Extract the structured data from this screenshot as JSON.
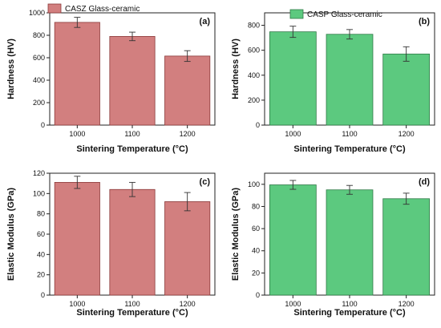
{
  "chart_data": [
    {
      "type": "bar",
      "panel_label": "(a)",
      "categories": [
        "1000",
        "1100",
        "1200"
      ],
      "values": [
        915,
        790,
        615
      ],
      "errors": [
        45,
        38,
        48
      ],
      "series_name": "CASZ Glass-ceramic",
      "xlabel": "Sintering Temperature (°C)",
      "ylabel": "Hardness (HV)",
      "ylim": [
        0,
        1000
      ],
      "yticks": [
        0,
        200,
        400,
        600,
        800,
        1000
      ],
      "legend": "top-left",
      "grid": false,
      "bar_color": "#d27f7f",
      "bar_edge": "#8b3a3a"
    },
    {
      "type": "bar",
      "panel_label": "(b)",
      "categories": [
        "1000",
        "1100",
        "1200"
      ],
      "values": [
        748,
        728,
        570
      ],
      "errors": [
        45,
        38,
        58
      ],
      "series_name": "CASP Glass-ceramic",
      "xlabel": "Sintering Temperature (°C)",
      "ylabel": "Hardness (HV)",
      "ylim": [
        0,
        900
      ],
      "yticks": [
        0,
        200,
        400,
        600,
        800
      ],
      "legend": "top-left",
      "grid": false,
      "bar_color": "#5cc97f",
      "bar_edge": "#2f7a47"
    },
    {
      "type": "bar",
      "panel_label": "(c)",
      "categories": [
        "1000",
        "1100",
        "1200"
      ],
      "values": [
        111,
        104,
        92
      ],
      "errors": [
        6,
        7,
        9
      ],
      "xlabel": "Sintering Temperature (°C)",
      "ylabel": "Elastic Modulus (GPa)",
      "ylim": [
        0,
        120
      ],
      "yticks": [
        0,
        20,
        40,
        60,
        80,
        100,
        120
      ],
      "grid": false,
      "bar_color": "#d27f7f",
      "bar_edge": "#8b3a3a"
    },
    {
      "type": "bar",
      "panel_label": "(d)",
      "categories": [
        "1000",
        "1100",
        "1200"
      ],
      "values": [
        99.5,
        95,
        87
      ],
      "errors": [
        4,
        4,
        5
      ],
      "xlabel": "Sintering Temperature (°C)",
      "ylabel": "Elastic Modulus (GPa)",
      "ylim": [
        0,
        110
      ],
      "yticks": [
        0,
        20,
        40,
        60,
        80,
        100
      ],
      "grid": false,
      "bar_color": "#5cc97f",
      "bar_edge": "#2f7a47"
    }
  ]
}
